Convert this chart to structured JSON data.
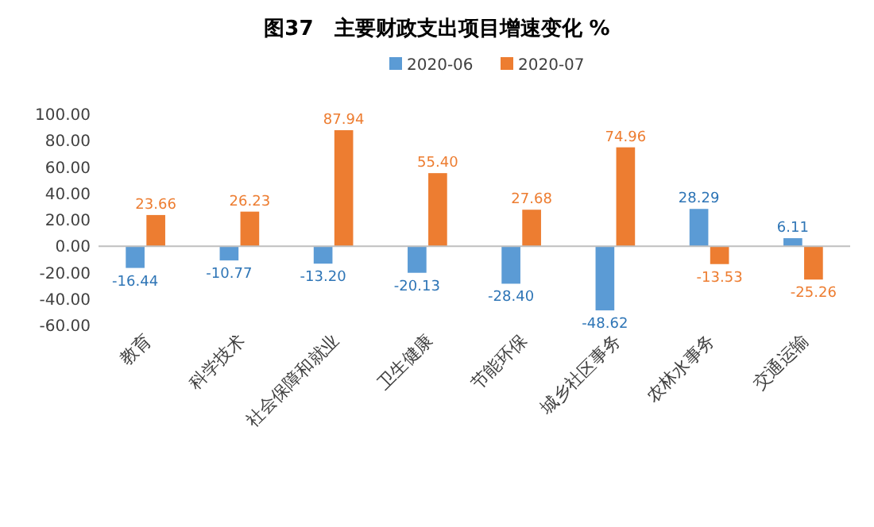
{
  "chart_data": {
    "type": "bar",
    "title": "图37　主要财政支出项目增速变化 %",
    "categories": [
      "教育",
      "科学技术",
      "社会保障和就业",
      "卫生健康",
      "节能环保",
      "城乡社区事务",
      "农林水事务",
      "交通运输"
    ],
    "series": [
      {
        "name": "2020-06",
        "color": "#5b9bd5",
        "values": [
          -16.44,
          -10.77,
          -13.2,
          -20.13,
          -28.4,
          -48.62,
          28.29,
          6.11
        ],
        "value_labels": [
          "-16.44",
          "-10.77",
          "-13.20",
          "-20.13",
          "-28.40",
          "-48.62",
          "28.29",
          "6.11"
        ]
      },
      {
        "name": "2020-07",
        "color": "#ed7d31",
        "values": [
          23.66,
          26.23,
          87.94,
          55.4,
          27.68,
          74.96,
          -13.53,
          -25.26
        ],
        "value_labels": [
          "23.66",
          "26.23",
          "87.94",
          "55.40",
          "27.68",
          "74.96",
          "-13.53",
          "-25.26"
        ]
      }
    ],
    "ylim": [
      -60,
      100
    ],
    "yticks": [
      {
        "value": -60,
        "label": "-60.00"
      },
      {
        "value": -40,
        "label": "-40.00"
      },
      {
        "value": -20,
        "label": "-20.00"
      },
      {
        "value": 0,
        "label": "0.00"
      },
      {
        "value": 20,
        "label": "20.00"
      },
      {
        "value": 40,
        "label": "40.00"
      },
      {
        "value": 60,
        "label": "60.00"
      },
      {
        "value": 80,
        "label": "80.00"
      },
      {
        "value": 100,
        "label": "100.00"
      }
    ],
    "legend": "top"
  }
}
